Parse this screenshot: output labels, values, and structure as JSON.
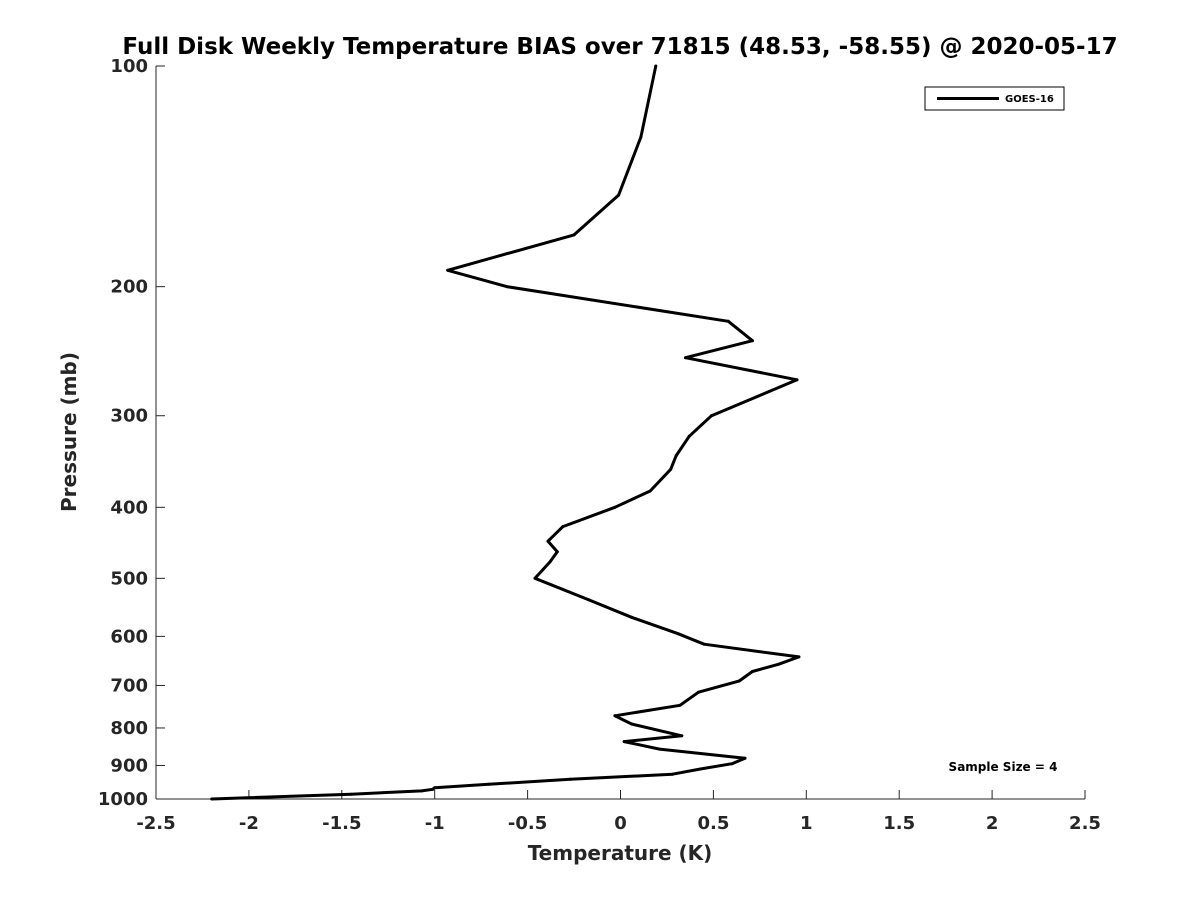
{
  "chart_data": {
    "type": "line",
    "title": "Full Disk Weekly Temperature BIAS over 71815 (48.53, -58.55) @ 2020-05-17",
    "xlabel": "Temperature (K)",
    "ylabel": "Pressure (mb)",
    "xlim": [
      -2.5,
      2.5
    ],
    "ylim": [
      100,
      1000
    ],
    "y_scale": "log",
    "y_reversed": true,
    "grid": false,
    "legend_position": "top-right",
    "x_ticks": [
      "-2.5",
      "-2",
      "-1.5",
      "-1",
      "-0.5",
      "0",
      "0.5",
      "1",
      "1.5",
      "2",
      "2.5"
    ],
    "y_ticks": [
      "100",
      "200",
      "300",
      "400",
      "500",
      "600",
      "700",
      "800",
      "900",
      "1000"
    ],
    "annotation": "Sample Size = 4",
    "series": [
      {
        "name": "GOES-16",
        "color": "#000000",
        "points": [
          {
            "x": 0.19,
            "y": 100
          },
          {
            "x": 0.11,
            "y": 125
          },
          {
            "x": -0.01,
            "y": 150
          },
          {
            "x": -0.25,
            "y": 170
          },
          {
            "x": -0.93,
            "y": 190
          },
          {
            "x": -0.61,
            "y": 200
          },
          {
            "x": 0.58,
            "y": 223
          },
          {
            "x": 0.71,
            "y": 237
          },
          {
            "x": 0.35,
            "y": 250
          },
          {
            "x": 0.95,
            "y": 268
          },
          {
            "x": 0.49,
            "y": 300
          },
          {
            "x": 0.37,
            "y": 320
          },
          {
            "x": 0.3,
            "y": 340
          },
          {
            "x": 0.27,
            "y": 355
          },
          {
            "x": 0.16,
            "y": 380
          },
          {
            "x": -0.03,
            "y": 400
          },
          {
            "x": -0.31,
            "y": 425
          },
          {
            "x": -0.39,
            "y": 445
          },
          {
            "x": -0.34,
            "y": 460
          },
          {
            "x": -0.38,
            "y": 475
          },
          {
            "x": -0.46,
            "y": 500
          },
          {
            "x": -0.17,
            "y": 535
          },
          {
            "x": 0.06,
            "y": 565
          },
          {
            "x": 0.31,
            "y": 595
          },
          {
            "x": 0.45,
            "y": 615
          },
          {
            "x": 0.96,
            "y": 640
          },
          {
            "x": 0.85,
            "y": 655
          },
          {
            "x": 0.71,
            "y": 670
          },
          {
            "x": 0.64,
            "y": 690
          },
          {
            "x": 0.42,
            "y": 715
          },
          {
            "x": 0.32,
            "y": 745
          },
          {
            "x": -0.03,
            "y": 770
          },
          {
            "x": 0.06,
            "y": 790
          },
          {
            "x": 0.33,
            "y": 820
          },
          {
            "x": 0.02,
            "y": 835
          },
          {
            "x": 0.21,
            "y": 855
          },
          {
            "x": 0.67,
            "y": 880
          },
          {
            "x": 0.6,
            "y": 895
          },
          {
            "x": 0.43,
            "y": 910
          },
          {
            "x": 0.28,
            "y": 925
          },
          {
            "x": -0.27,
            "y": 940
          },
          {
            "x": -0.71,
            "y": 955
          },
          {
            "x": -1.0,
            "y": 965
          },
          {
            "x": -1.01,
            "y": 970
          },
          {
            "x": -1.07,
            "y": 975
          },
          {
            "x": -1.45,
            "y": 985
          },
          {
            "x": -2.2,
            "y": 1000
          }
        ]
      }
    ]
  }
}
